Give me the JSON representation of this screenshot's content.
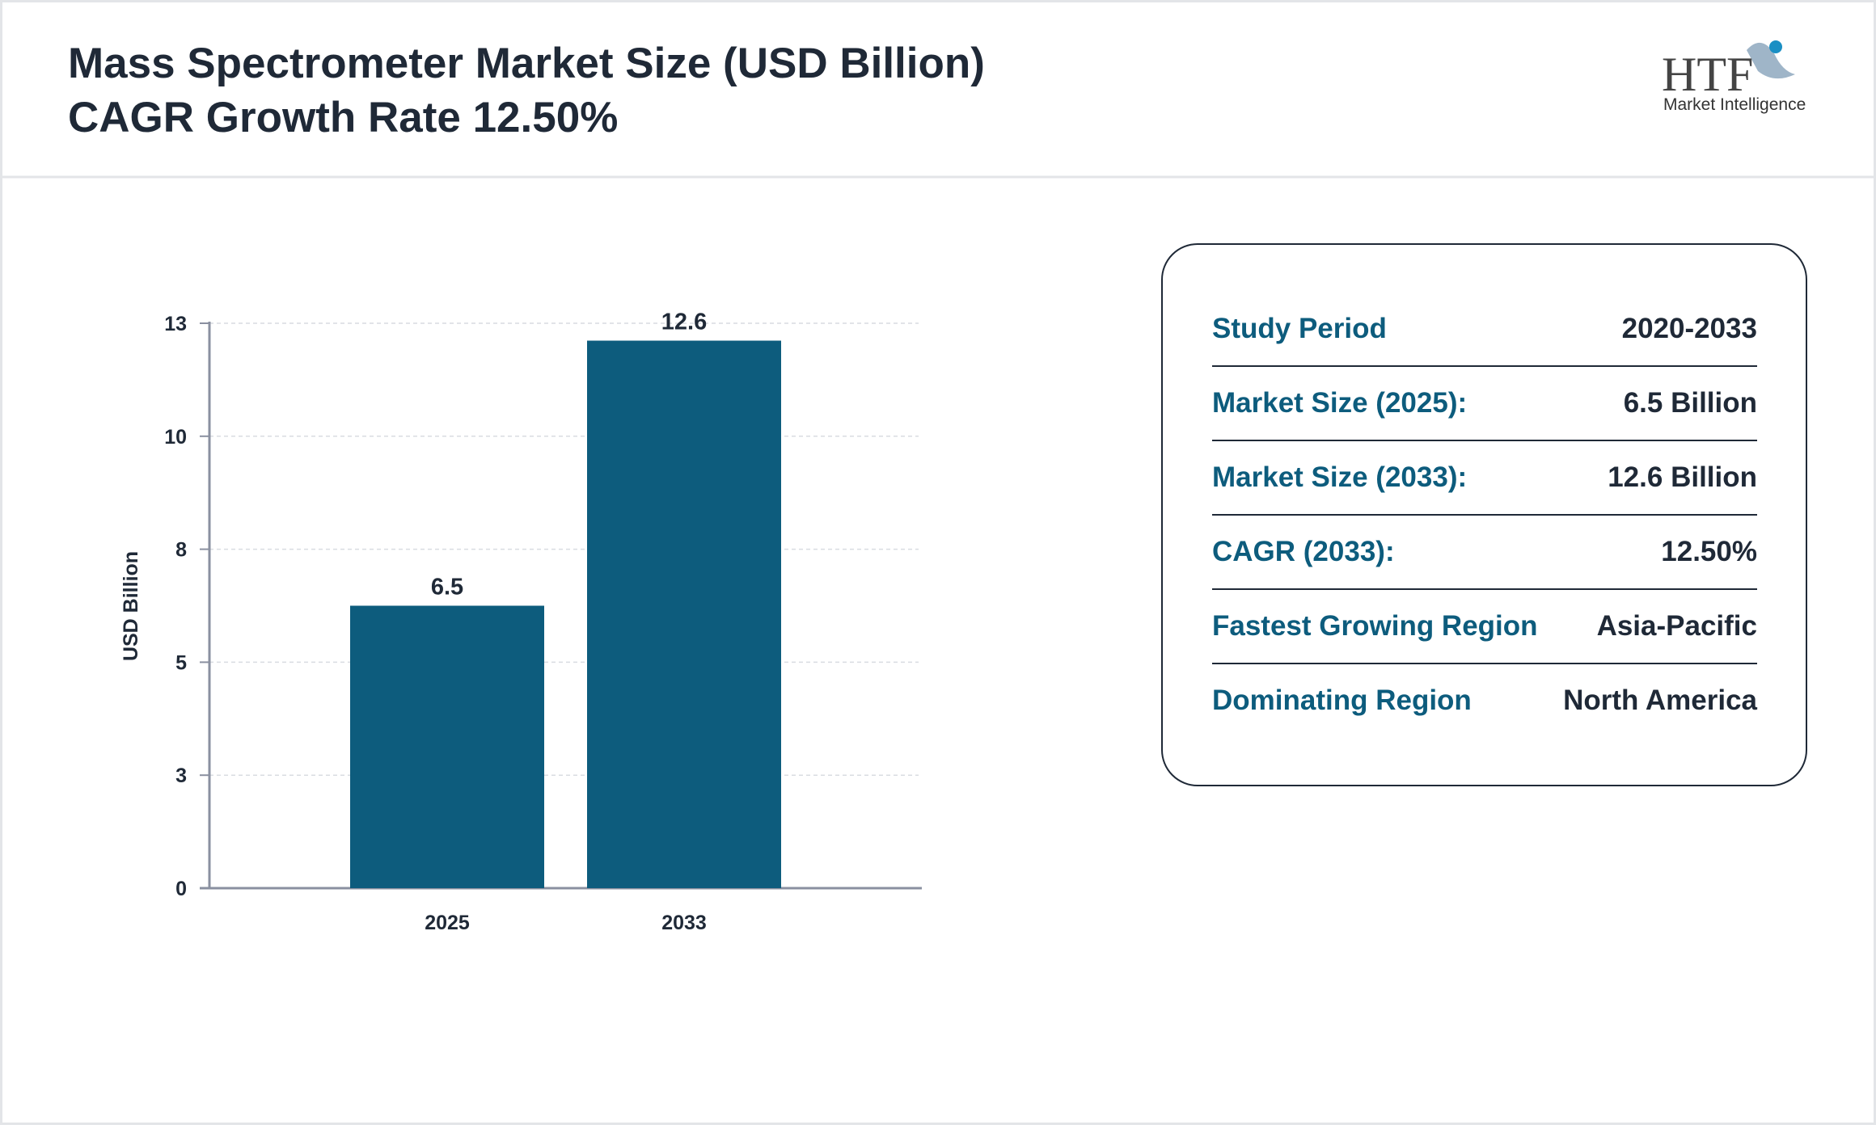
{
  "header": {
    "title": "Mass Spectrometer Market Size (USD Billion)",
    "subtitle": "CAGR Growth Rate 12.50%"
  },
  "logo": {
    "mark": "HTF",
    "text": "Market Intelligence"
  },
  "chart_data": {
    "type": "bar",
    "y_label": "USD Billion",
    "categories": [
      "2025",
      "2033"
    ],
    "values": [
      6.5,
      12.6
    ],
    "color": "#0d5c7d",
    "ylim": [
      0,
      13
    ],
    "yticks": [
      0,
      {
        "value": 2.6,
        "label": "3"
      },
      {
        "value": 5.2,
        "label": "5"
      },
      {
        "value": 7.8,
        "label": "8"
      },
      {
        "value": 10.4,
        "label": "10"
      },
      13
    ],
    "grid": true
  },
  "info": {
    "rows": [
      [
        "Study Period",
        "2020-2033"
      ],
      [
        "Market Size (2025):",
        "6.5 Billion"
      ],
      [
        "Market Size (2033):",
        "12.6 Billion"
      ],
      [
        "CAGR (2033):",
        "12.50%"
      ],
      [
        "Fastest Growing Region",
        "Asia-Pacific"
      ],
      [
        "Dominating Region",
        "North America"
      ]
    ]
  }
}
